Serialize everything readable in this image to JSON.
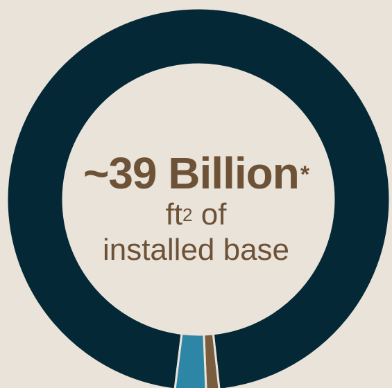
{
  "chart_data": {
    "type": "pie",
    "variant": "donut",
    "slices": [
      {
        "value": 96.3,
        "color": "#042836"
      },
      {
        "value": 1.1,
        "color": "#7a5c3f"
      },
      {
        "value": 2.6,
        "color": "#2e86a6"
      }
    ],
    "separator_color": "#e9e3d9",
    "center_label": {
      "value_text": "~39 Billion",
      "footnote_mark": "*",
      "unit_base": "ft",
      "unit_superscript": "2",
      "unit_suffix": " of",
      "description": "installed base"
    }
  },
  "colors": {
    "background": "#e9e3d9",
    "text": "#6d5237"
  }
}
